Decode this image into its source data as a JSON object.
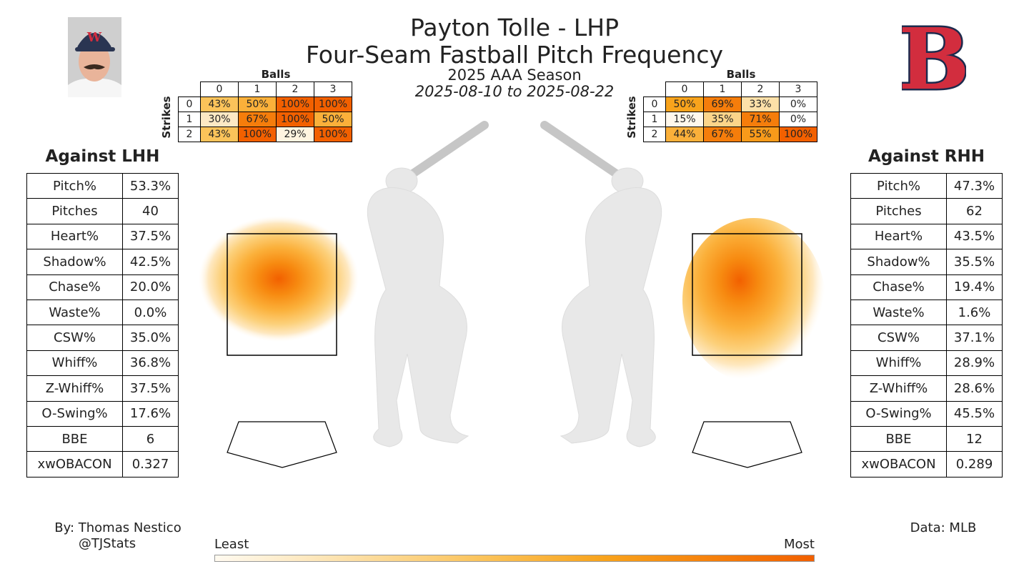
{
  "header": {
    "title_line1": "Payton Tolle - LHP",
    "title_line2": "Four-Seam Fastball Pitch Frequency",
    "season": "2025 AAA Season",
    "date_range": "2025-08-10 to 2025-08-22"
  },
  "colors": {
    "heat_low": "#fffaf0",
    "heat_mid": "#fbc35a",
    "heat_high": "#f26000",
    "silhouette": "#e8e8e8",
    "logo_red": "#d22d3e",
    "logo_navy": "#1d2a4d"
  },
  "count_grid_lhh": {
    "balls_label": "Balls",
    "strikes_label": "Strikes",
    "balls": [
      "0",
      "1",
      "2",
      "3"
    ],
    "strikes": [
      "0",
      "1",
      "2"
    ],
    "cells": [
      [
        "43%",
        "50%",
        "100%",
        "100%"
      ],
      [
        "30%",
        "67%",
        "100%",
        "50%"
      ],
      [
        "43%",
        "100%",
        "29%",
        "100%"
      ]
    ],
    "colors": [
      [
        "#fbc35a",
        "#fbb03a",
        "#f26000",
        "#f26000"
      ],
      [
        "#fde9c4",
        "#f57d0b",
        "#f26000",
        "#fbb03a"
      ],
      [
        "#fbc35a",
        "#f26000",
        "#fff4e0",
        "#f26000"
      ]
    ]
  },
  "count_grid_rhh": {
    "balls_label": "Balls",
    "strikes_label": "Strikes",
    "balls": [
      "0",
      "1",
      "2",
      "3"
    ],
    "strikes": [
      "0",
      "1",
      "2"
    ],
    "cells": [
      [
        "50%",
        "69%",
        "33%",
        "0%"
      ],
      [
        "15%",
        "35%",
        "71%",
        "0%"
      ],
      [
        "44%",
        "67%",
        "55%",
        "100%"
      ]
    ],
    "colors": [
      [
        "#f8a31c",
        "#f57d0b",
        "#fde0a8",
        "#ffffff"
      ],
      [
        "#fff8ec",
        "#fcd58a",
        "#f57d0b",
        "#ffffff"
      ],
      [
        "#fbb03a",
        "#f57d0b",
        "#f89a1a",
        "#f26000"
      ]
    ]
  },
  "stats_lhh": {
    "heading": "Against LHH",
    "rows": [
      {
        "k": "Pitch%",
        "v": "53.3%"
      },
      {
        "k": "Pitches",
        "v": "40"
      },
      {
        "k": "Heart%",
        "v": "37.5%"
      },
      {
        "k": "Shadow%",
        "v": "42.5%"
      },
      {
        "k": "Chase%",
        "v": "20.0%"
      },
      {
        "k": "Waste%",
        "v": "0.0%"
      },
      {
        "k": "CSW%",
        "v": "35.0%"
      },
      {
        "k": "Whiff%",
        "v": "36.8%"
      },
      {
        "k": "Z-Whiff%",
        "v": "37.5%"
      },
      {
        "k": "O-Swing%",
        "v": "17.6%"
      },
      {
        "k": "BBE",
        "v": "6"
      },
      {
        "k": "xwOBACON",
        "v": "0.327"
      }
    ]
  },
  "stats_rhh": {
    "heading": "Against RHH",
    "rows": [
      {
        "k": "Pitch%",
        "v": "47.3%"
      },
      {
        "k": "Pitches",
        "v": "62"
      },
      {
        "k": "Heart%",
        "v": "43.5%"
      },
      {
        "k": "Shadow%",
        "v": "35.5%"
      },
      {
        "k": "Chase%",
        "v": "19.4%"
      },
      {
        "k": "Waste%",
        "v": "1.6%"
      },
      {
        "k": "CSW%",
        "v": "37.1%"
      },
      {
        "k": "Whiff%",
        "v": "28.9%"
      },
      {
        "k": "Z-Whiff%",
        "v": "28.6%"
      },
      {
        "k": "O-Swing%",
        "v": "45.5%"
      },
      {
        "k": "BBE",
        "v": "12"
      },
      {
        "k": "xwOBACON",
        "v": "0.289"
      }
    ]
  },
  "footer": {
    "credit_line1": "By: Thomas Nestico",
    "credit_line2": "@TJStats",
    "source": "Data: MLB",
    "legend_low": "Least",
    "legend_high": "Most"
  },
  "chart_data": {
    "type": "heatmap",
    "title": "Four-Seam Fastball Pitch Frequency",
    "panels": [
      {
        "name": "Against LHH",
        "density_peak": "upper-middle of zone",
        "count_grid": "count_grid_lhh"
      },
      {
        "name": "Against RHH",
        "density_peak": "upper-left of zone",
        "count_grid": "count_grid_rhh"
      }
    ],
    "legend": {
      "low": "Least",
      "high": "Most"
    }
  }
}
